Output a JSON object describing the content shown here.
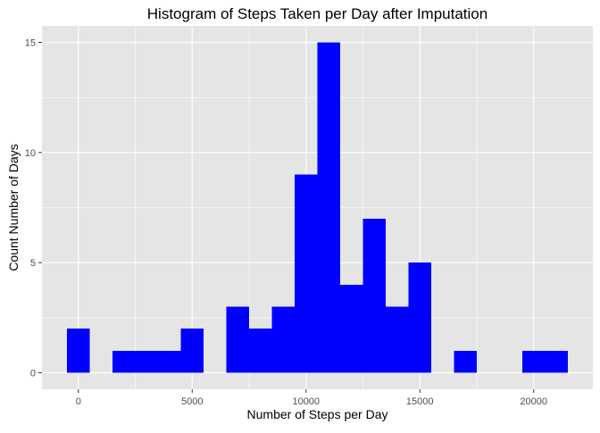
{
  "chart_data": {
    "type": "bar",
    "title": "Histogram of Steps Taken per Day after Imputation",
    "xlabel": "Number of Steps per Day",
    "ylabel": "Count Number of Days",
    "bin_width": 1000,
    "bins": [
      {
        "start": -500,
        "end": 500,
        "count": 2
      },
      {
        "start": 500,
        "end": 1500,
        "count": 0
      },
      {
        "start": 1500,
        "end": 2500,
        "count": 1
      },
      {
        "start": 2500,
        "end": 3500,
        "count": 1
      },
      {
        "start": 3500,
        "end": 4500,
        "count": 1
      },
      {
        "start": 4500,
        "end": 5500,
        "count": 2
      },
      {
        "start": 5500,
        "end": 6500,
        "count": 0
      },
      {
        "start": 6500,
        "end": 7500,
        "count": 3
      },
      {
        "start": 7500,
        "end": 8500,
        "count": 2
      },
      {
        "start": 8500,
        "end": 9500,
        "count": 3
      },
      {
        "start": 9500,
        "end": 10500,
        "count": 9
      },
      {
        "start": 10500,
        "end": 11500,
        "count": 15
      },
      {
        "start": 11500,
        "end": 12500,
        "count": 4
      },
      {
        "start": 12500,
        "end": 13500,
        "count": 7
      },
      {
        "start": 13500,
        "end": 14500,
        "count": 3
      },
      {
        "start": 14500,
        "end": 15500,
        "count": 5
      },
      {
        "start": 15500,
        "end": 16500,
        "count": 0
      },
      {
        "start": 16500,
        "end": 17500,
        "count": 1
      },
      {
        "start": 17500,
        "end": 18500,
        "count": 0
      },
      {
        "start": 18500,
        "end": 19500,
        "count": 0
      },
      {
        "start": 19500,
        "end": 20500,
        "count": 1
      },
      {
        "start": 20500,
        "end": 21500,
        "count": 1
      }
    ],
    "xlim": [
      -1600,
      22600
    ],
    "ylim": [
      -0.75,
      15.75
    ],
    "x_ticks": [
      0,
      5000,
      10000,
      15000,
      20000
    ],
    "x_tick_labels": [
      "0",
      "5000",
      "10000",
      "15000",
      "20000"
    ],
    "x_minor_ticks": [
      2500,
      7500,
      12500,
      17500
    ],
    "y_ticks": [
      0,
      5,
      10,
      15
    ],
    "y_tick_labels": [
      "0",
      "5",
      "10",
      "15"
    ],
    "y_minor_ticks": [
      2.5,
      7.5,
      12.5
    ],
    "bar_color": "#0000ff",
    "panel_background": "#e5e5e5",
    "grid_color": "#ffffff",
    "grid": true,
    "legend": "none"
  }
}
